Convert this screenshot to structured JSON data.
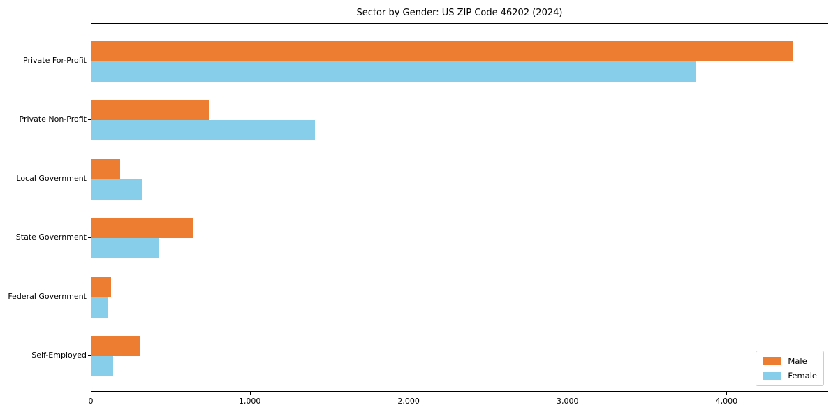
{
  "chart_data": {
    "type": "bar",
    "orientation": "horizontal",
    "title": "Sector by Gender: US ZIP Code 46202 (2024)",
    "categories": [
      "Private For-Profit",
      "Private Non-Profit",
      "Local Government",
      "State Government",
      "Federal Government",
      "Self-Employed"
    ],
    "series": [
      {
        "name": "Male",
        "color": "#ed7d31",
        "values": [
          4420,
          740,
          180,
          640,
          125,
          305
        ]
      },
      {
        "name": "Female",
        "color": "#87ceeb",
        "values": [
          3810,
          1410,
          315,
          425,
          105,
          135
        ]
      }
    ],
    "xlabel": "",
    "ylabel": "",
    "xlim": [
      0,
      4640
    ],
    "xticks": [
      0,
      1000,
      2000,
      3000,
      4000
    ],
    "xtick_labels": [
      "0",
      "1,000",
      "2,000",
      "3,000",
      "4,000"
    ],
    "grid": false,
    "legend": {
      "position": "lower right"
    }
  }
}
